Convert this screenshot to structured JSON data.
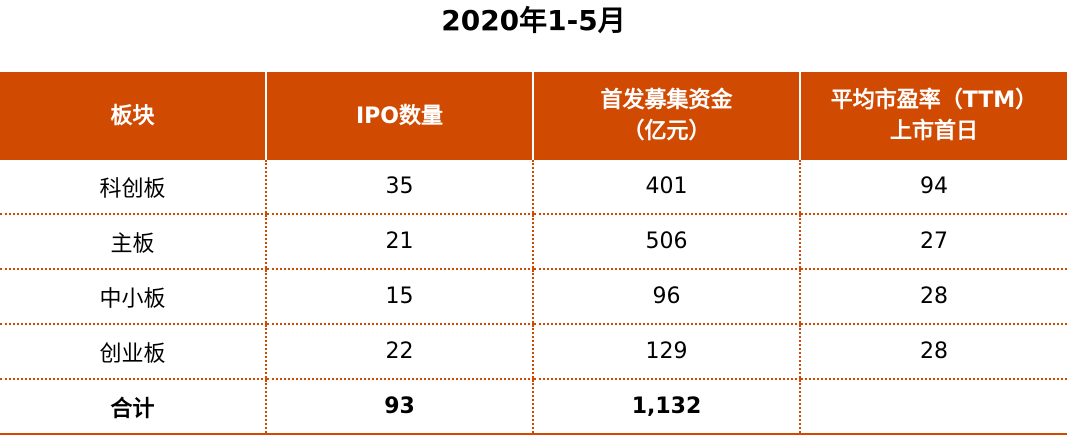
{
  "title": "2020年1-5月",
  "colors": {
    "accent": "#d04a02",
    "header_text": "#ffffff"
  },
  "table": {
    "headers": [
      [
        "板块"
      ],
      [
        "IPO数量"
      ],
      [
        "首发募集资金",
        "（亿元）"
      ],
      [
        "平均市盈率（TTM）",
        "上市首日"
      ]
    ],
    "rows": [
      [
        "科创板",
        "35",
        "401",
        "94"
      ],
      [
        "主板",
        "21",
        "506",
        "27"
      ],
      [
        "中小板",
        "15",
        "96",
        "28"
      ],
      [
        "创业板",
        "22",
        "129",
        "28"
      ]
    ],
    "total": [
      "合计",
      "93",
      "1,132",
      ""
    ]
  }
}
